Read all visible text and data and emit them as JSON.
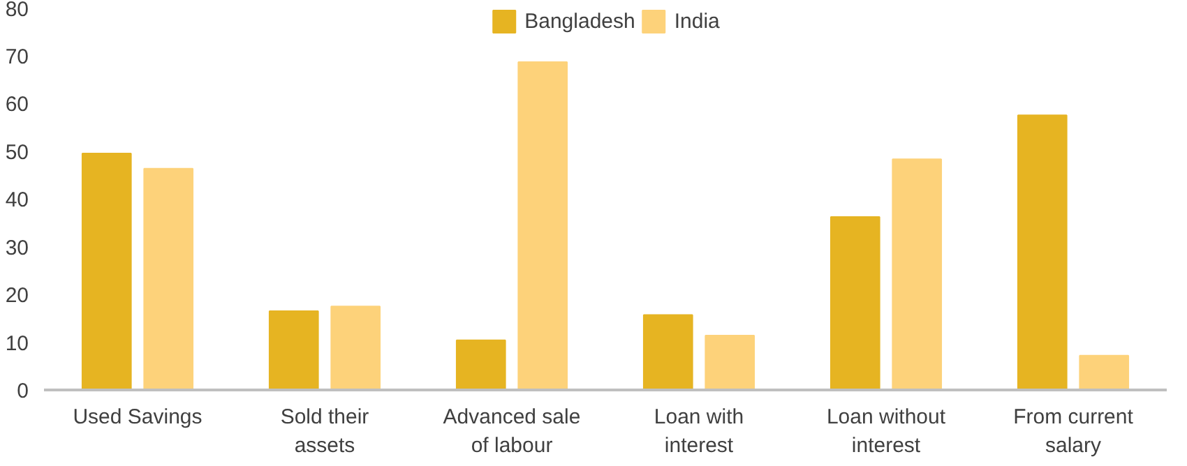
{
  "chart_data": {
    "type": "bar",
    "categories": [
      "Used Savings",
      "Sold their assets",
      "Advanced sale of labour",
      "Loan with interest",
      "Loan without interest",
      "From current salary"
    ],
    "series": [
      {
        "name": "Bangladesh",
        "color": "#e6b422",
        "values": [
          49.5,
          16.5,
          10.4,
          15.7,
          36.2,
          57.5
        ]
      },
      {
        "name": "India",
        "color": "#fdd27a",
        "values": [
          46.3,
          17.5,
          68.6,
          11.4,
          48.3,
          7.2
        ]
      }
    ],
    "ylim": [
      0,
      80
    ],
    "yticks": [
      0,
      10,
      20,
      30,
      40,
      50,
      60,
      70,
      80
    ],
    "grid": false,
    "legend": "top"
  }
}
